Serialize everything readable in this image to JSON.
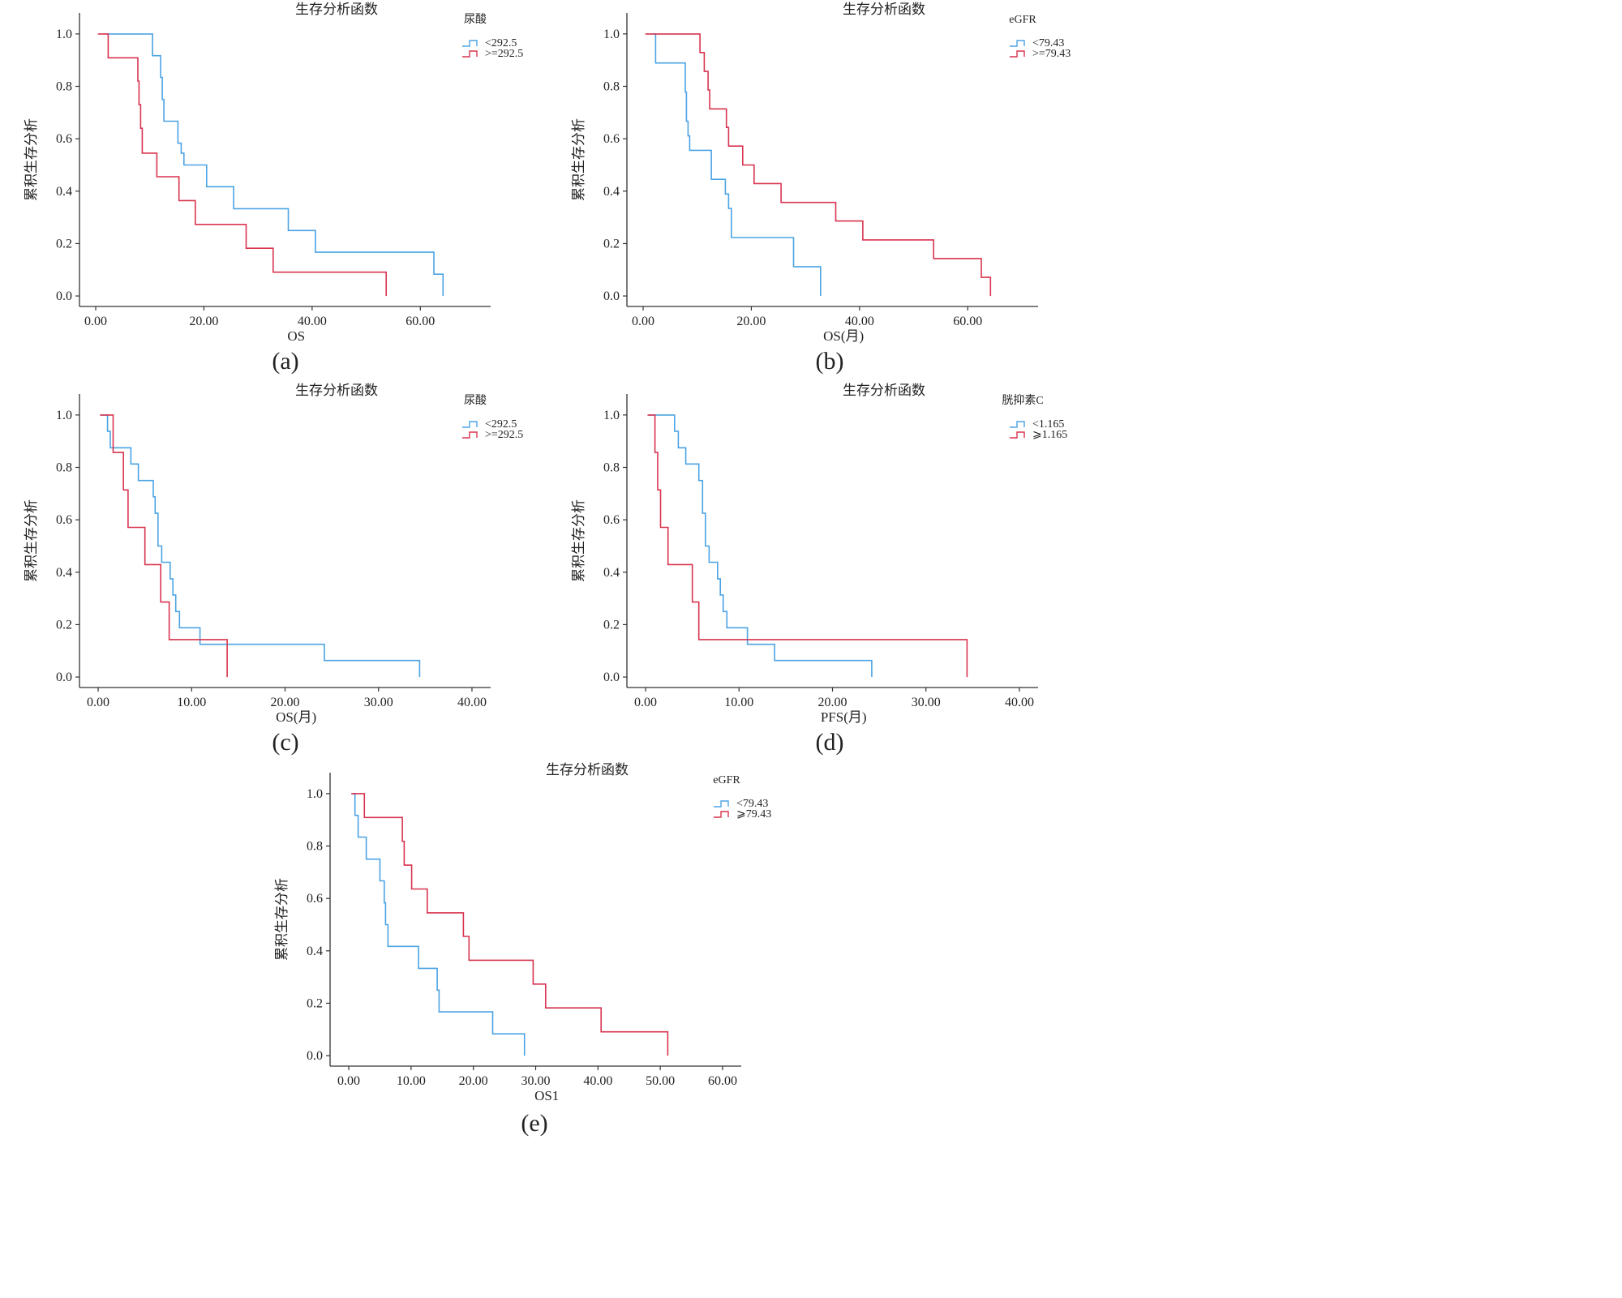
{
  "chart_data": [
    {
      "id": "a",
      "type": "line",
      "step": true,
      "title": "生存分析函数",
      "xlabel": "OS",
      "ylabel": "累积生存分析",
      "caption": "(a)",
      "xlim": [
        -3,
        73
      ],
      "ylim": [
        -0.04,
        1.08
      ],
      "xticks": [
        0,
        20,
        40,
        60
      ],
      "xtick_labels": [
        "0.00",
        "20.00",
        "40.00",
        "60.00"
      ],
      "yticks": [
        0,
        0.2,
        0.4,
        0.6,
        0.8,
        1.0
      ],
      "ytick_labels": [
        "0.0",
        "0.2",
        "0.4",
        "0.6",
        "0.8",
        "1.0"
      ],
      "legend_title": "尿酸",
      "series": [
        {
          "name": "<292.5",
          "color": "#4ba3e3",
          "x": [
            1.8,
            10.5,
            10.5,
            12,
            12,
            12.3,
            12.3,
            12.6,
            12.6,
            15.2,
            15.2,
            15.8,
            15.8,
            16.3,
            16.3,
            20.5,
            20.5,
            25.5,
            25.5,
            35.6,
            35.6,
            40.6,
            40.6,
            62.5,
            62.5,
            64.2,
            64.2
          ],
          "y": [
            1.0,
            1.0,
            0.917,
            0.917,
            0.834,
            0.834,
            0.75,
            0.75,
            0.667,
            0.667,
            0.583,
            0.583,
            0.545,
            0.545,
            0.5,
            0.5,
            0.417,
            0.417,
            0.333,
            0.333,
            0.25,
            0.25,
            0.167,
            0.167,
            0.083,
            0.083,
            0.0
          ]
        },
        {
          "name": ">=292.5",
          "color": "#d8344f",
          "x": [
            0.4,
            2.3,
            2.3,
            7.8,
            7.8,
            8.0,
            8.0,
            8.3,
            8.3,
            8.6,
            8.6,
            11.3,
            11.3,
            15.4,
            15.4,
            15.8,
            15.8,
            18.4,
            18.4,
            27.8,
            27.8,
            32.8,
            32.8,
            53.7,
            53.7
          ],
          "y": [
            1.0,
            1.0,
            0.909,
            0.909,
            0.82,
            0.82,
            0.73,
            0.73,
            0.64,
            0.64,
            0.545,
            0.545,
            0.455,
            0.455,
            0.364,
            0.364,
            0.364,
            0.364,
            0.273,
            0.273,
            0.182,
            0.182,
            0.091,
            0.091,
            0.0
          ]
        }
      ]
    },
    {
      "id": "b",
      "type": "line",
      "step": true,
      "title": "生存分析函数",
      "xlabel": "OS(月)",
      "ylabel": "累积生存分析",
      "caption": "(b)",
      "xlim": [
        -3,
        73
      ],
      "ylim": [
        -0.04,
        1.08
      ],
      "xticks": [
        0,
        20,
        40,
        60
      ],
      "xtick_labels": [
        "0.00",
        "20.00",
        "40.00",
        "60.00"
      ],
      "yticks": [
        0,
        0.2,
        0.4,
        0.6,
        0.8,
        1.0
      ],
      "ytick_labels": [
        "0.0",
        "0.2",
        "0.4",
        "0.6",
        "0.8",
        "1.0"
      ],
      "legend_title": "eGFR",
      "series": [
        {
          "name": "<79.43",
          "color": "#4ba3e3",
          "x": [
            1.8,
            2.3,
            2.3,
            7.8,
            7.8,
            8.0,
            8.0,
            8.3,
            8.3,
            8.6,
            8.6,
            12.6,
            12.6,
            15.2,
            15.2,
            15.8,
            15.8,
            16.3,
            16.3,
            27.8,
            27.8,
            32.8,
            32.8
          ],
          "y": [
            1.0,
            1.0,
            0.889,
            0.889,
            0.778,
            0.778,
            0.667,
            0.667,
            0.611,
            0.611,
            0.556,
            0.556,
            0.445,
            0.445,
            0.389,
            0.389,
            0.334,
            0.334,
            0.223,
            0.223,
            0.112,
            0.112,
            0.0
          ]
        },
        {
          "name": ">=79.43",
          "color": "#d8344f",
          "x": [
            0.4,
            10.5,
            10.5,
            11.3,
            11.3,
            12.0,
            12.0,
            12.3,
            12.3,
            12.6,
            12.6,
            15.4,
            15.4,
            15.8,
            15.8,
            18.4,
            18.4,
            20.5,
            20.5,
            25.5,
            25.5,
            35.6,
            35.6,
            40.6,
            40.6,
            53.7,
            53.7,
            62.5,
            62.5,
            64.2,
            64.2
          ],
          "y": [
            1.0,
            1.0,
            0.929,
            0.929,
            0.857,
            0.857,
            0.786,
            0.786,
            0.714,
            0.714,
            0.714,
            0.714,
            0.643,
            0.643,
            0.572,
            0.572,
            0.5,
            0.5,
            0.429,
            0.429,
            0.357,
            0.357,
            0.286,
            0.286,
            0.214,
            0.214,
            0.143,
            0.143,
            0.071,
            0.071,
            0.0
          ]
        }
      ]
    },
    {
      "id": "c",
      "type": "line",
      "step": true,
      "title": "生存分析函数",
      "xlabel": "OS(月)",
      "ylabel": "累积生存分析",
      "caption": "(c)",
      "xlim": [
        -2,
        42
      ],
      "ylim": [
        -0.04,
        1.08
      ],
      "xticks": [
        0,
        10,
        20,
        30,
        40
      ],
      "xtick_labels": [
        "0.00",
        "10.00",
        "20.00",
        "30.00",
        "40.00"
      ],
      "yticks": [
        0,
        0.2,
        0.4,
        0.6,
        0.8,
        1.0
      ],
      "ytick_labels": [
        "0.0",
        "0.2",
        "0.4",
        "0.6",
        "0.8",
        "1.0"
      ],
      "legend_title": "尿酸",
      "series": [
        {
          "name": "<292.5",
          "color": "#4ba3e3",
          "x": [
            0.3,
            1.0,
            1.0,
            1.3,
            1.3,
            1.8,
            1.8,
            3.5,
            3.5,
            4.3,
            4.3,
            5.9,
            5.9,
            6.1,
            6.1,
            6.4,
            6.4,
            6.8,
            6.8,
            7.7,
            7.7,
            8.0,
            8.0,
            8.3,
            8.3,
            8.7,
            8.7,
            10.9,
            10.9,
            24.2,
            24.2,
            34.4,
            34.4
          ],
          "y": [
            1.0,
            1.0,
            0.938,
            0.938,
            0.875,
            0.875,
            0.875,
            0.875,
            0.813,
            0.813,
            0.75,
            0.75,
            0.688,
            0.688,
            0.625,
            0.625,
            0.5,
            0.5,
            0.438,
            0.438,
            0.375,
            0.375,
            0.313,
            0.313,
            0.25,
            0.25,
            0.188,
            0.188,
            0.125,
            0.125,
            0.063,
            0.063,
            0.0
          ]
        },
        {
          "name": ">=292.5",
          "color": "#d8344f",
          "x": [
            0.2,
            1.6,
            1.6,
            2.4,
            2.4,
            2.7,
            2.7,
            3.2,
            3.2,
            5.0,
            5.0,
            6.7,
            6.7,
            7.6,
            7.6,
            13.8,
            13.8
          ],
          "y": [
            1.0,
            1.0,
            0.857,
            0.857,
            0.857,
            0.857,
            0.714,
            0.714,
            0.571,
            0.571,
            0.429,
            0.429,
            0.286,
            0.286,
            0.143,
            0.143,
            0.0
          ]
        }
      ]
    },
    {
      "id": "d",
      "type": "line",
      "step": true,
      "title": "生存分析函数",
      "xlabel": "PFS(月)",
      "ylabel": "累积生存分析",
      "caption": "(d)",
      "xlim": [
        -2,
        42
      ],
      "ylim": [
        -0.04,
        1.08
      ],
      "xticks": [
        0,
        10,
        20,
        30,
        40
      ],
      "xtick_labels": [
        "0.00",
        "10.00",
        "20.00",
        "30.00",
        "40.00"
      ],
      "yticks": [
        0,
        0.2,
        0.4,
        0.6,
        0.8,
        1.0
      ],
      "ytick_labels": [
        "0.0",
        "0.2",
        "0.4",
        "0.6",
        "0.8",
        "1.0"
      ],
      "legend_title": "胱抑素C",
      "series": [
        {
          "name": "<1.165",
          "color": "#4ba3e3",
          "x": [
            0.3,
            3.1,
            3.1,
            3.5,
            3.5,
            4.3,
            4.3,
            5.7,
            5.7,
            6.1,
            6.1,
            6.4,
            6.4,
            6.8,
            6.8,
            7.7,
            7.7,
            8.0,
            8.0,
            8.3,
            8.3,
            8.7,
            8.7,
            10.9,
            10.9,
            13.8,
            13.8,
            24.2,
            24.2
          ],
          "y": [
            1.0,
            1.0,
            0.938,
            0.938,
            0.875,
            0.875,
            0.813,
            0.813,
            0.75,
            0.75,
            0.625,
            0.625,
            0.5,
            0.5,
            0.438,
            0.438,
            0.375,
            0.375,
            0.313,
            0.313,
            0.25,
            0.25,
            0.188,
            0.188,
            0.125,
            0.125,
            0.063,
            0.063,
            0.0
          ]
        },
        {
          "name": "⩾1.165",
          "color": "#d8344f",
          "x": [
            0.2,
            1.0,
            1.0,
            1.3,
            1.3,
            1.6,
            1.6,
            2.4,
            2.4,
            5.0,
            5.0,
            5.7,
            5.7,
            34.4,
            34.4
          ],
          "y": [
            1.0,
            1.0,
            0.857,
            0.857,
            0.714,
            0.714,
            0.571,
            0.571,
            0.429,
            0.429,
            0.286,
            0.286,
            0.143,
            0.143,
            0.0
          ]
        }
      ]
    },
    {
      "id": "e",
      "type": "line",
      "step": true,
      "title": "生存分析函数",
      "xlabel": "OS1",
      "ylabel": "累积生存分析",
      "caption": "(e)",
      "xlim": [
        -3,
        63
      ],
      "ylim": [
        -0.04,
        1.08
      ],
      "xticks": [
        0,
        10,
        20,
        30,
        40,
        50,
        60
      ],
      "xtick_labels": [
        "0.00",
        "10.00",
        "20.00",
        "30.00",
        "40.00",
        "50.00",
        "60.00"
      ],
      "yticks": [
        0,
        0.2,
        0.4,
        0.6,
        0.8,
        1.0
      ],
      "ytick_labels": [
        "0.0",
        "0.2",
        "0.4",
        "0.6",
        "0.8",
        "1.0"
      ],
      "legend_title": "eGFR",
      "series": [
        {
          "name": "<79.43",
          "color": "#4ba3e3",
          "x": [
            0.5,
            1.0,
            1.0,
            1.5,
            1.5,
            2.8,
            2.8,
            5.0,
            5.0,
            5.7,
            5.7,
            5.9,
            5.9,
            6.3,
            6.3,
            11.2,
            11.2,
            14.2,
            14.2,
            14.5,
            14.5,
            23.1,
            23.1,
            28.2,
            28.2
          ],
          "y": [
            1.0,
            1.0,
            0.917,
            0.917,
            0.834,
            0.834,
            0.75,
            0.75,
            0.667,
            0.667,
            0.583,
            0.583,
            0.5,
            0.5,
            0.417,
            0.417,
            0.333,
            0.333,
            0.25,
            0.25,
            0.167,
            0.167,
            0.083,
            0.083,
            0.0
          ]
        },
        {
          "name": "⩾79.43",
          "color": "#d8344f",
          "x": [
            0.4,
            2.5,
            2.5,
            8.6,
            8.6,
            8.9,
            8.9,
            10.1,
            10.1,
            12.6,
            12.6,
            18.4,
            18.4,
            19.3,
            19.3,
            29.6,
            29.6,
            31.6,
            31.6,
            40.5,
            40.5,
            51.2,
            51.2
          ],
          "y": [
            1.0,
            1.0,
            0.909,
            0.909,
            0.818,
            0.818,
            0.727,
            0.727,
            0.636,
            0.636,
            0.545,
            0.545,
            0.455,
            0.455,
            0.364,
            0.364,
            0.273,
            0.273,
            0.182,
            0.182,
            0.091,
            0.091,
            0.0
          ]
        }
      ]
    }
  ]
}
